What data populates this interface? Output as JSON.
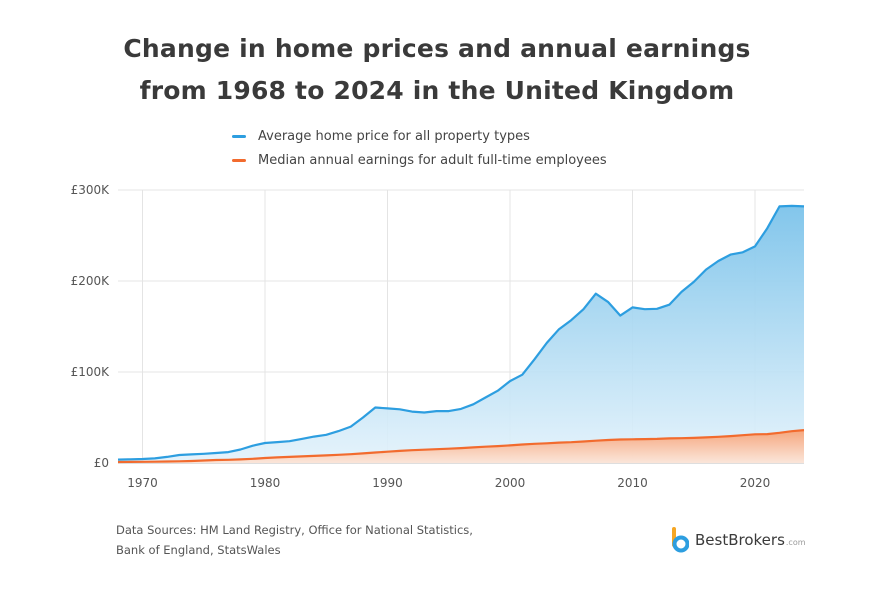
{
  "chart_data": {
    "type": "area",
    "title_line1": "Change in home prices and annual earnings",
    "title_line2": "from 1968 to 2024 in the United Kingdom",
    "xlabel": "",
    "ylabel": "",
    "xlim": [
      1968,
      2024
    ],
    "ylim": [
      0,
      300000
    ],
    "x_ticks": [
      1970,
      1980,
      1990,
      2000,
      2010,
      2020
    ],
    "y_ticks": [
      0,
      100000,
      200000,
      300000
    ],
    "y_tick_labels": [
      "£0",
      "£100K",
      "£200K",
      "£300K"
    ],
    "grid": true,
    "legend_position": "top",
    "x": [
      1968,
      1969,
      1970,
      1971,
      1972,
      1973,
      1974,
      1975,
      1976,
      1977,
      1978,
      1979,
      1980,
      1981,
      1982,
      1983,
      1984,
      1985,
      1986,
      1987,
      1988,
      1989,
      1990,
      1991,
      1992,
      1993,
      1994,
      1995,
      1996,
      1997,
      1998,
      1999,
      2000,
      2001,
      2002,
      2003,
      2004,
      2005,
      2006,
      2007,
      2008,
      2009,
      2010,
      2011,
      2012,
      2013,
      2014,
      2015,
      2016,
      2017,
      2018,
      2019,
      2020,
      2021,
      2022,
      2023,
      2024
    ],
    "series": [
      {
        "name": "Average home price for all property types",
        "color": "#2d9ee0",
        "values": [
          3700,
          4100,
          4400,
          5000,
          6700,
          8800,
          9500,
          10100,
          11000,
          12000,
          14800,
          19000,
          22000,
          23000,
          24000,
          26500,
          29000,
          31000,
          35000,
          40000,
          50000,
          61000,
          60000,
          59000,
          56500,
          55500,
          57000,
          57000,
          59500,
          64500,
          72000,
          79500,
          90000,
          97000,
          114000,
          132000,
          147000,
          157000,
          169000,
          186000,
          177000,
          162000,
          171000,
          169000,
          169500,
          174000,
          188000,
          199000,
          212500,
          222000,
          229000,
          231500,
          238000,
          258000,
          282000,
          282500,
          282000
        ]
      },
      {
        "name": "Median annual earnings for adult full-time employees",
        "color": "#f26b2e",
        "values": [
          1100,
          1200,
          1300,
          1450,
          1650,
          1900,
          2200,
          2750,
          3250,
          3550,
          4000,
          4600,
          5500,
          6200,
          6700,
          7200,
          7800,
          8400,
          9000,
          9700,
          10600,
          11500,
          12400,
          13300,
          14100,
          14600,
          15200,
          15700,
          16400,
          17100,
          17900,
          18600,
          19300,
          20300,
          21100,
          21700,
          22400,
          22900,
          23600,
          24500,
          25300,
          25800,
          26000,
          26300,
          26500,
          27000,
          27300,
          27600,
          28100,
          28800,
          29600,
          30600,
          31500,
          31800,
          33200,
          34900,
          36200
        ]
      }
    ]
  },
  "sources": {
    "line1": "Data Sources: HM Land Registry, Office for National Statistics,",
    "line2": "Bank of England, StatsWales"
  },
  "brand": {
    "name": "BestBrokers",
    "suffix": ".com"
  }
}
